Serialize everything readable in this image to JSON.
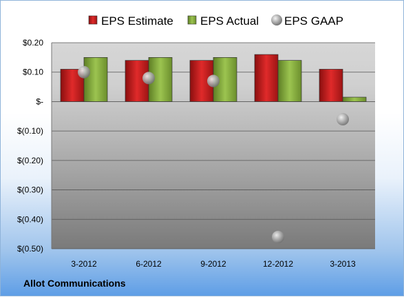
{
  "chart_data": {
    "type": "bar",
    "categories": [
      "3-2012",
      "6-2012",
      "9-2012",
      "12-2012",
      "3-2013"
    ],
    "series": [
      {
        "name": "EPS Estimate",
        "values": [
          0.11,
          0.14,
          0.14,
          0.16,
          0.11
        ],
        "color": "#cc2222"
      },
      {
        "name": "EPS Actual",
        "values": [
          0.15,
          0.15,
          0.15,
          0.14,
          0.015
        ],
        "color": "#88b040"
      },
      {
        "name": "EPS GAAP",
        "values": [
          0.1,
          0.08,
          0.07,
          -0.46,
          -0.06
        ],
        "color": "#a6a6a6",
        "mark": "circle"
      }
    ],
    "y_ticks": [
      0.2,
      0.1,
      0,
      -0.1,
      -0.2,
      -0.3,
      -0.4,
      -0.5
    ],
    "y_tick_labels": [
      "$0.20",
      "$0.10",
      "$-",
      "$(0.10)",
      "$(0.20)",
      "$(0.30)",
      "$(0.40)",
      "$(0.50)"
    ],
    "ylim": [
      -0.5,
      0.2
    ],
    "grid": true,
    "legend_position": "top"
  },
  "footer": {
    "company": "Allot Communications"
  }
}
